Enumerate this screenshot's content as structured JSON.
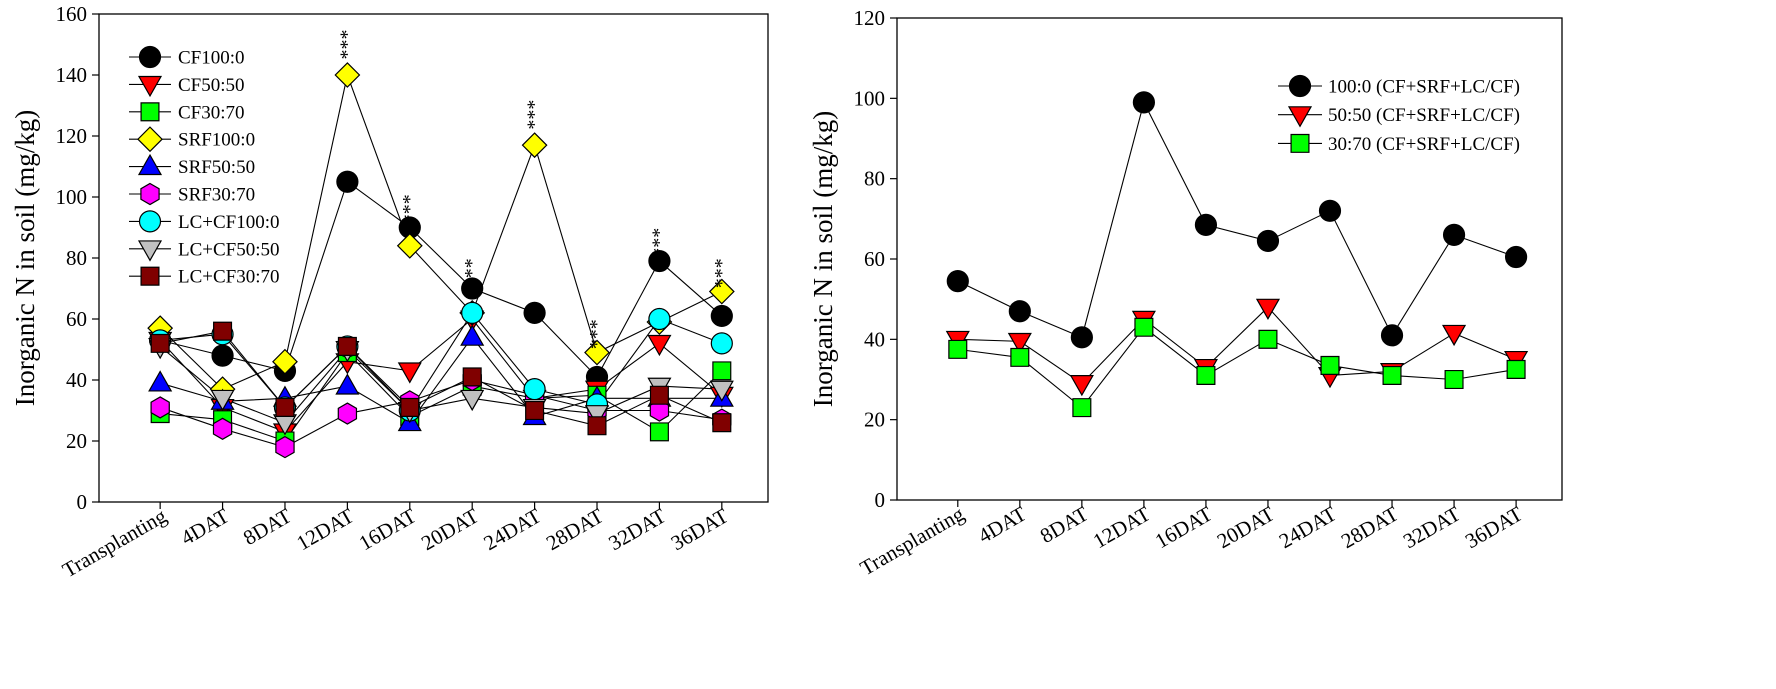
{
  "chart_data": [
    {
      "type": "line",
      "title": "",
      "xlabel": "",
      "ylabel": "Inorganic N in soil (mg/kg)",
      "ylim": [
        0,
        160
      ],
      "yticks": [
        0,
        20,
        40,
        60,
        80,
        100,
        120,
        140,
        160
      ],
      "grid": false,
      "legend_position": "top-left",
      "categories": [
        "Transplanting",
        "4DAT",
        "8DAT",
        "12DAT",
        "16DAT",
        "20DAT",
        "24DAT",
        "28DAT",
        "32DAT",
        "36DAT"
      ],
      "series": [
        {
          "name": "CF100:0",
          "marker": "circle",
          "color": "#000000",
          "values": [
            53,
            48,
            43,
            105,
            90,
            70,
            62,
            41,
            79,
            61
          ]
        },
        {
          "name": "CF50:50",
          "marker": "triangle-down",
          "color": "#ff0000",
          "values": [
            53,
            31,
            23,
            46,
            43,
            60,
            34,
            37,
            52,
            35
          ]
        },
        {
          "name": "CF30:70",
          "marker": "square",
          "color": "#00ff00",
          "values": [
            29,
            27,
            20,
            49,
            28,
            38,
            34,
            35,
            23,
            43
          ]
        },
        {
          "name": "SRF100:0",
          "marker": "diamond",
          "color": "#ffff00",
          "values": [
            57,
            37,
            46,
            140,
            84,
            62,
            117,
            49,
            59,
            69
          ]
        },
        {
          "name": "SRF50:50",
          "marker": "triangle-up",
          "color": "#0000ff",
          "values": [
            39,
            33,
            34,
            38,
            26,
            54,
            28,
            34,
            34,
            34
          ]
        },
        {
          "name": "SRF30:70",
          "marker": "hexagon",
          "color": "#ff00ff",
          "values": [
            31,
            24,
            18,
            29,
            33,
            40,
            35,
            30,
            30,
            27
          ]
        },
        {
          "name": "LC+CF100:0",
          "marker": "circle",
          "color": "#00ffff",
          "values": [
            53,
            55,
            31,
            51,
            30,
            62,
            37,
            32,
            60,
            52
          ]
        },
        {
          "name": "LC+CF50:50",
          "marker": "triangle-down",
          "color": "#c0c0c0",
          "values": [
            51,
            34,
            26,
            50,
            30,
            34,
            31,
            29,
            38,
            37
          ]
        },
        {
          "name": "LC+CF30:70",
          "marker": "square",
          "color": "#800000",
          "values": [
            52,
            56,
            31,
            51,
            31,
            41,
            30,
            25,
            35,
            26
          ]
        }
      ],
      "annotations": [
        {
          "text": "***",
          "category": "12DAT",
          "y": 150
        },
        {
          "text": "***",
          "category": "16DAT",
          "y": 96
        },
        {
          "text": "***",
          "category": "20DAT",
          "y": 75
        },
        {
          "text": "***",
          "category": "24DAT",
          "y": 127
        },
        {
          "text": "***",
          "category": "28DAT",
          "y": 55
        },
        {
          "text": "***",
          "category": "32DAT",
          "y": 85
        },
        {
          "text": "***",
          "category": "36DAT",
          "y": 75
        }
      ]
    },
    {
      "type": "line",
      "title": "",
      "xlabel": "",
      "ylabel": "Inorganic N in soil (mg/kg)",
      "ylim": [
        0,
        120
      ],
      "yticks": [
        0,
        20,
        40,
        60,
        80,
        100,
        120
      ],
      "grid": false,
      "legend_position": "top-right",
      "categories": [
        "Transplanting",
        "4DAT",
        "8DAT",
        "12DAT",
        "16DAT",
        "20DAT",
        "24DAT",
        "28DAT",
        "32DAT",
        "36DAT"
      ],
      "series": [
        {
          "name": "100:0 (CF+SRF+LC/CF)",
          "marker": "circle",
          "color": "#000000",
          "values": [
            54.5,
            47,
            40.5,
            99,
            68.5,
            64.5,
            72,
            41,
            66,
            60.5
          ]
        },
        {
          "name": "50:50 (CF+SRF+LC/CF)",
          "marker": "triangle-down",
          "color": "#ff0000",
          "values": [
            40,
            39.5,
            29,
            45,
            33,
            48,
            31,
            32,
            41.5,
            35
          ]
        },
        {
          "name": "30:70 (CF+SRF+LC/CF)",
          "marker": "square",
          "color": "#00ff00",
          "values": [
            37.5,
            35.5,
            23,
            43,
            31,
            40,
            33.5,
            31,
            30,
            32.5
          ]
        }
      ],
      "annotations": []
    }
  ]
}
